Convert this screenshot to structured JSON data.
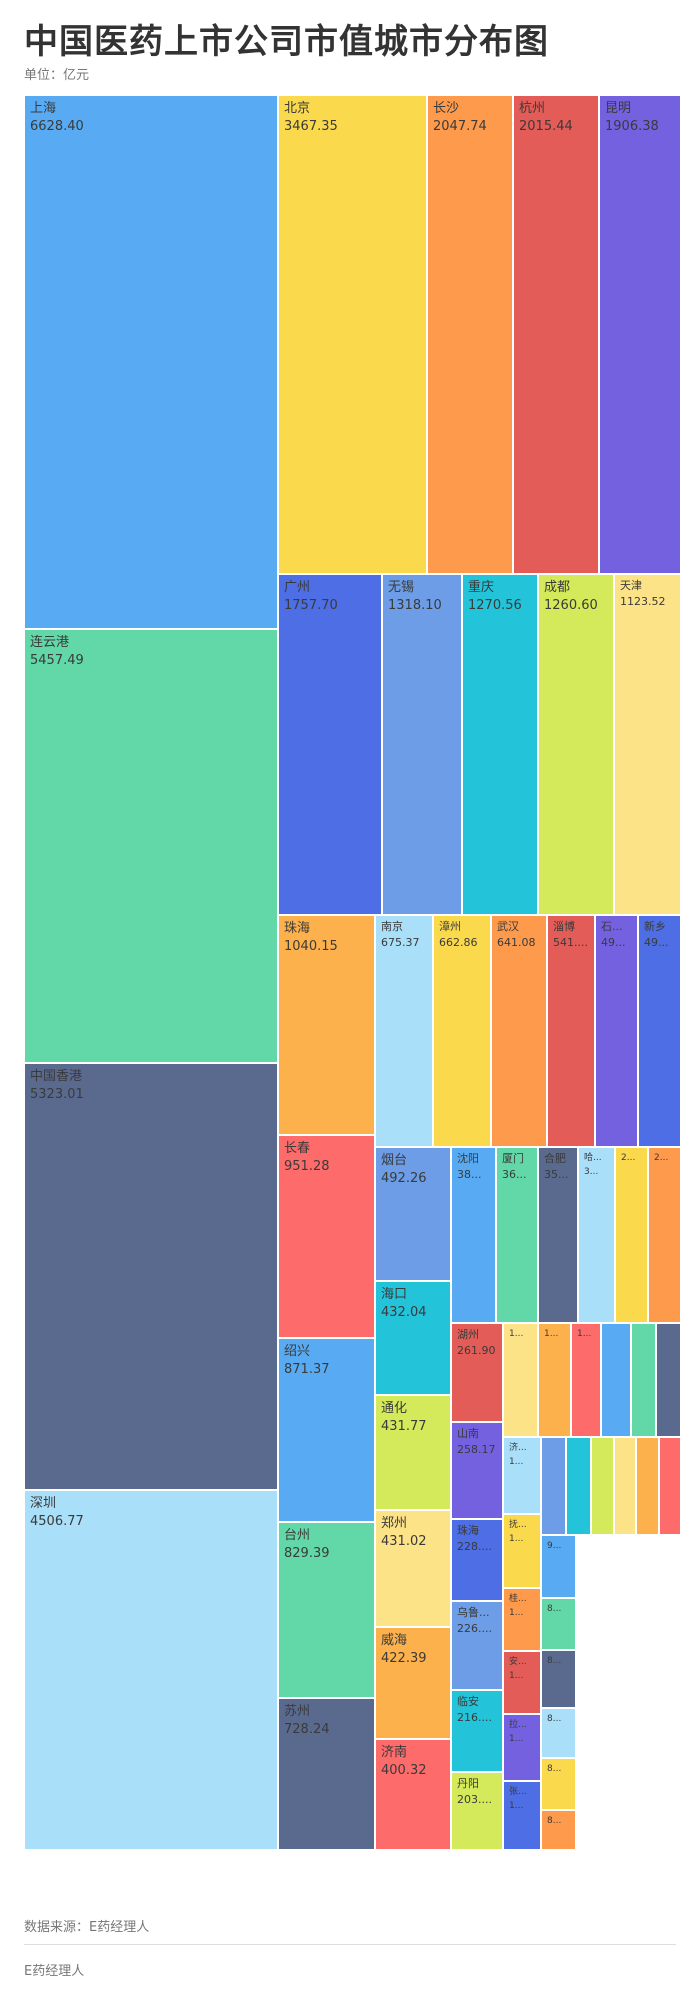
{
  "title": "中国医药上市公司市值城市分布图",
  "subtitle": "单位：亿元",
  "source": "数据来源：E药经理人",
  "footer": "E药经理人",
  "chart_data": {
    "type": "treemap",
    "title": "中国医药上市公司市值城市分布图",
    "unit": "亿元",
    "cells": [
      {
        "name": "上海",
        "label": "6628.40",
        "value": 6628.4,
        "color": "#58abf2"
      },
      {
        "name": "连云港",
        "label": "5457.49",
        "value": 5457.49,
        "color": "#62d8a9"
      },
      {
        "name": "中国香港",
        "label": "5323.01",
        "value": 5323.01,
        "color": "#5a6a8e"
      },
      {
        "name": "深圳",
        "label": "4506.77",
        "value": 4506.77,
        "color": "#a9dff8"
      },
      {
        "name": "北京",
        "label": "3467.35",
        "value": 3467.35,
        "color": "#fbd94d"
      },
      {
        "name": "长沙",
        "label": "2047.74",
        "value": 2047.74,
        "color": "#fd9a4c"
      },
      {
        "name": "杭州",
        "label": "2015.44",
        "value": 2015.44,
        "color": "#e45c57"
      },
      {
        "name": "昆明",
        "label": "1906.38",
        "value": 1906.38,
        "color": "#7361e0"
      },
      {
        "name": "广州",
        "label": "1757.70",
        "value": 1757.7,
        "color": "#4d6ee4"
      },
      {
        "name": "无锡",
        "label": "1318.10",
        "value": 1318.1,
        "color": "#6c9de6"
      },
      {
        "name": "重庆",
        "label": "1270.56",
        "value": 1270.56,
        "color": "#23c4da"
      },
      {
        "name": "成都",
        "label": "1260.60",
        "value": 1260.6,
        "color": "#d5ea5a"
      },
      {
        "name": "天津",
        "label": "1123.52",
        "value": 1123.52,
        "color": "#fde387"
      },
      {
        "name": "珠海",
        "label": "1040.15",
        "value": 1040.15,
        "color": "#fdb14c"
      },
      {
        "name": "南京",
        "label": "675.37",
        "value": 675.37,
        "color": "#a9dff8"
      },
      {
        "name": "漳州",
        "label": "662.86",
        "value": 662.86,
        "color": "#fbd94d"
      },
      {
        "name": "武汉",
        "label": "641.08",
        "value": 641.08,
        "color": "#fd9a4c"
      },
      {
        "name": "淄博",
        "label": "541....",
        "value": 541,
        "color": "#e45c57"
      },
      {
        "name": "石...",
        "label": "49...",
        "value": 495,
        "color": "#7361e0"
      },
      {
        "name": "新乡",
        "label": "49...",
        "value": 490,
        "color": "#4d6ee4"
      },
      {
        "name": "长春",
        "label": "951.28",
        "value": 951.28,
        "color": "#fd6b6b"
      },
      {
        "name": "烟台",
        "label": "492.26",
        "value": 492.26,
        "color": "#6c9de6"
      },
      {
        "name": "海口",
        "label": "432.04",
        "value": 432.04,
        "color": "#23c4da"
      },
      {
        "name": "沈阳",
        "label": "38...",
        "value": 385,
        "color": "#58abf2"
      },
      {
        "name": "厦门",
        "label": "36...",
        "value": 365,
        "color": "#62d8a9"
      },
      {
        "name": "合肥",
        "label": "35...",
        "value": 355,
        "color": "#5a6a8e"
      },
      {
        "name": "哈...",
        "label": "3...",
        "value": 340,
        "color": "#a9dff8"
      },
      {
        "name": "2...",
        "label": "",
        "value": 310,
        "color": "#fbd94d"
      },
      {
        "name": "2...",
        "label": "",
        "value": 300,
        "color": "#fd9a4c"
      },
      {
        "name": "绍兴",
        "label": "871.37",
        "value": 871.37,
        "color": "#58abf2"
      },
      {
        "name": "通化",
        "label": "431.77",
        "value": 431.77,
        "color": "#d5ea5a"
      },
      {
        "name": "湖州",
        "label": "261.90",
        "value": 261.9,
        "color": "#e45c57"
      },
      {
        "name": "1...",
        "label": "",
        "value": 255,
        "color": "#fde387"
      },
      {
        "name": "1...",
        "label": "",
        "value": 250,
        "color": "#fdb14c"
      },
      {
        "name": "1...",
        "label": "",
        "value": 245,
        "color": "#fd6b6b"
      },
      {
        "name": "",
        "label": "",
        "value": 230,
        "color": "#58abf2"
      },
      {
        "name": "",
        "label": "",
        "value": 225,
        "color": "#62d8a9"
      },
      {
        "name": "",
        "label": "",
        "value": 220,
        "color": "#5a6a8e"
      },
      {
        "name": "台州",
        "label": "829.39",
        "value": 829.39,
        "color": "#62d8a9"
      },
      {
        "name": "郑州",
        "label": "431.02",
        "value": 431.02,
        "color": "#fde387"
      },
      {
        "name": "山南",
        "label": "258.17",
        "value": 258.17,
        "color": "#7361e0"
      },
      {
        "name": "济...",
        "label": "1...",
        "value": 200,
        "color": "#a9dff8"
      },
      {
        "name": "",
        "label": "",
        "value": 195,
        "color": "#6c9de6"
      },
      {
        "name": "",
        "label": "",
        "value": 190,
        "color": "#23c4da"
      },
      {
        "name": "",
        "label": "",
        "value": 185,
        "color": "#d5ea5a"
      },
      {
        "name": "",
        "label": "",
        "value": 180,
        "color": "#fde387"
      },
      {
        "name": "",
        "label": "",
        "value": 175,
        "color": "#fdb14c"
      },
      {
        "name": "",
        "label": "",
        "value": 170,
        "color": "#fd6b6b"
      },
      {
        "name": "威海",
        "label": "422.39",
        "value": 422.39,
        "color": "#fdb14c"
      },
      {
        "name": "苏州",
        "label": "728.24",
        "value": 728.24,
        "color": "#5a6a8e"
      },
      {
        "name": "济南",
        "label": "400.32",
        "value": 400.32,
        "color": "#fd6b6b"
      },
      {
        "name": "珠海",
        "label": "228....",
        "value": 228,
        "color": "#4d6ee4"
      },
      {
        "name": "抚...",
        "label": "1...",
        "value": 165,
        "color": "#fbd94d"
      },
      {
        "name": "乌鲁...",
        "label": "226....",
        "value": 226,
        "color": "#6c9de6"
      },
      {
        "name": "桂...",
        "label": "1...",
        "value": 160,
        "color": "#fd9a4c"
      },
      {
        "name": "临安",
        "label": "216....",
        "value": 216,
        "color": "#23c4da"
      },
      {
        "name": "安...",
        "label": "1...",
        "value": 150,
        "color": "#e45c57"
      },
      {
        "name": "丹阳",
        "label": "203....",
        "value": 203,
        "color": "#d5ea5a"
      },
      {
        "name": "拉...",
        "label": "1...",
        "value": 145,
        "color": "#7361e0"
      },
      {
        "name": "张...",
        "label": "1...",
        "value": 140,
        "color": "#4d6ee4"
      },
      {
        "name": "9...",
        "label": "",
        "value": 135,
        "color": "#58abf2"
      },
      {
        "name": "8...",
        "label": "",
        "value": 130,
        "color": "#62d8a9"
      },
      {
        "name": "8...",
        "label": "",
        "value": 125,
        "color": "#5a6a8e"
      },
      {
        "name": "8...",
        "label": "",
        "value": 120,
        "color": "#a9dff8"
      },
      {
        "name": "8...",
        "label": "",
        "value": 115,
        "color": "#fbd94d"
      },
      {
        "name": "8...",
        "label": "",
        "value": 110,
        "color": "#fd9a4c"
      }
    ]
  }
}
